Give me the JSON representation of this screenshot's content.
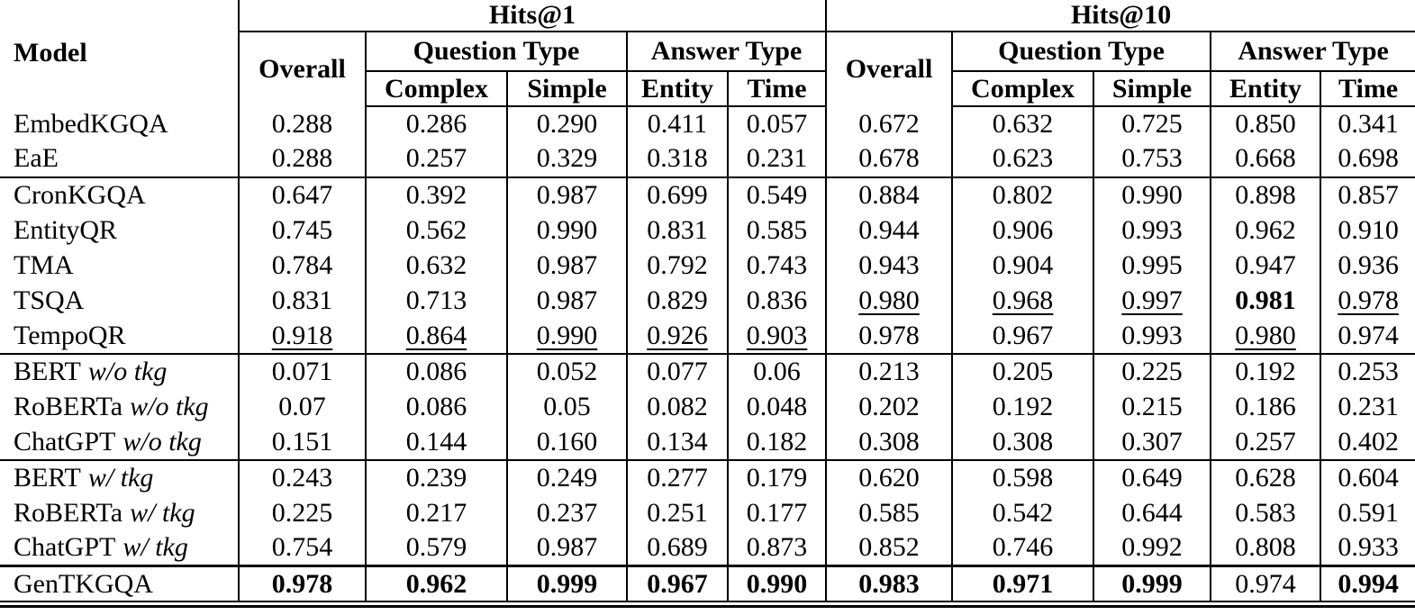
{
  "table": {
    "header": {
      "model": "Model",
      "hits1": "Hits@1",
      "hits10": "Hits@10",
      "overall": "Overall",
      "question_type": "Question Type",
      "answer_type": "Answer Type",
      "complex": "Complex",
      "simple": "Simple",
      "entity": "Entity",
      "time": "Time"
    },
    "rows": [
      {
        "model": "EmbedKGQA",
        "suffix": "",
        "values": [
          "0.288",
          "0.286",
          "0.290",
          "0.411",
          "0.057",
          "0.672",
          "0.632",
          "0.725",
          "0.850",
          "0.341"
        ],
        "fmt": [
          "",
          "",
          "",
          "",
          "",
          "",
          "",
          "",
          "",
          ""
        ],
        "rule_below": "none"
      },
      {
        "model": "EaE",
        "suffix": "",
        "values": [
          "0.288",
          "0.257",
          "0.329",
          "0.318",
          "0.231",
          "0.678",
          "0.623",
          "0.753",
          "0.668",
          "0.698"
        ],
        "fmt": [
          "",
          "",
          "",
          "",
          "",
          "",
          "",
          "",
          "",
          ""
        ],
        "rule_below": "thin"
      },
      {
        "model": "CronKGQA",
        "suffix": "",
        "values": [
          "0.647",
          "0.392",
          "0.987",
          "0.699",
          "0.549",
          "0.884",
          "0.802",
          "0.990",
          "0.898",
          "0.857"
        ],
        "fmt": [
          "",
          "",
          "",
          "",
          "",
          "",
          "",
          "",
          "",
          ""
        ],
        "rule_below": "none"
      },
      {
        "model": "EntityQR",
        "suffix": "",
        "values": [
          "0.745",
          "0.562",
          "0.990",
          "0.831",
          "0.585",
          "0.944",
          "0.906",
          "0.993",
          "0.962",
          "0.910"
        ],
        "fmt": [
          "",
          "",
          "",
          "",
          "",
          "",
          "",
          "",
          "",
          ""
        ],
        "rule_below": "none"
      },
      {
        "model": "TMA",
        "suffix": "",
        "values": [
          "0.784",
          "0.632",
          "0.987",
          "0.792",
          "0.743",
          "0.943",
          "0.904",
          "0.995",
          "0.947",
          "0.936"
        ],
        "fmt": [
          "",
          "",
          "",
          "",
          "",
          "",
          "",
          "",
          "",
          ""
        ],
        "rule_below": "none"
      },
      {
        "model": "TSQA",
        "suffix": "",
        "values": [
          "0.831",
          "0.713",
          "0.987",
          "0.829",
          "0.836",
          "0.980",
          "0.968",
          "0.997",
          "0.981",
          "0.978"
        ],
        "fmt": [
          "",
          "",
          "",
          "",
          "",
          "u",
          "u",
          "u",
          "b",
          "u"
        ],
        "rule_below": "none"
      },
      {
        "model": "TempoQR",
        "suffix": "",
        "values": [
          "0.918",
          "0.864",
          "0.990",
          "0.926",
          "0.903",
          "0.978",
          "0.967",
          "0.993",
          "0.980",
          "0.974"
        ],
        "fmt": [
          "u",
          "u",
          "u",
          "u",
          "u",
          "",
          "",
          "",
          "u",
          ""
        ],
        "rule_below": "thin"
      },
      {
        "model": "BERT",
        "suffix": "w/o tkg",
        "values": [
          "0.071",
          "0.086",
          "0.052",
          "0.077",
          "0.06",
          "0.213",
          "0.205",
          "0.225",
          "0.192",
          "0.253"
        ],
        "fmt": [
          "",
          "",
          "",
          "",
          "",
          "",
          "",
          "",
          "",
          ""
        ],
        "rule_below": "none"
      },
      {
        "model": "RoBERTa",
        "suffix": "w/o tkg",
        "values": [
          "0.07",
          "0.086",
          "0.05",
          "0.082",
          "0.048",
          "0.202",
          "0.192",
          "0.215",
          "0.186",
          "0.231"
        ],
        "fmt": [
          "",
          "",
          "",
          "",
          "",
          "",
          "",
          "",
          "",
          ""
        ],
        "rule_below": "none"
      },
      {
        "model": "ChatGPT",
        "suffix": "w/o tkg",
        "values": [
          "0.151",
          "0.144",
          "0.160",
          "0.134",
          "0.182",
          "0.308",
          "0.308",
          "0.307",
          "0.257",
          "0.402"
        ],
        "fmt": [
          "",
          "",
          "",
          "",
          "",
          "",
          "",
          "",
          "",
          ""
        ],
        "rule_below": "thin"
      },
      {
        "model": "BERT",
        "suffix": "w/ tkg",
        "values": [
          "0.243",
          "0.239",
          "0.249",
          "0.277",
          "0.179",
          "0.620",
          "0.598",
          "0.649",
          "0.628",
          "0.604"
        ],
        "fmt": [
          "",
          "",
          "",
          "",
          "",
          "",
          "",
          "",
          "",
          ""
        ],
        "rule_below": "none"
      },
      {
        "model": "RoBERTa",
        "suffix": "w/ tkg",
        "values": [
          "0.225",
          "0.217",
          "0.237",
          "0.251",
          "0.177",
          "0.585",
          "0.542",
          "0.644",
          "0.583",
          "0.591"
        ],
        "fmt": [
          "",
          "",
          "",
          "",
          "",
          "",
          "",
          "",
          "",
          ""
        ],
        "rule_below": "none"
      },
      {
        "model": "ChatGPT",
        "suffix": "w/ tkg",
        "values": [
          "0.754",
          "0.579",
          "0.987",
          "0.689",
          "0.873",
          "0.852",
          "0.746",
          "0.992",
          "0.808",
          "0.933"
        ],
        "fmt": [
          "",
          "",
          "",
          "",
          "",
          "",
          "",
          "",
          "",
          ""
        ],
        "rule_below": "thick"
      },
      {
        "model": "GenTKGQA",
        "suffix": "",
        "values": [
          "0.978",
          "0.962",
          "0.999",
          "0.967",
          "0.990",
          "0.983",
          "0.971",
          "0.999",
          "0.974",
          "0.994"
        ],
        "fmt": [
          "b",
          "b",
          "b",
          "b",
          "b",
          "b",
          "b",
          "b",
          "",
          "b"
        ],
        "rule_below": "none"
      }
    ]
  }
}
